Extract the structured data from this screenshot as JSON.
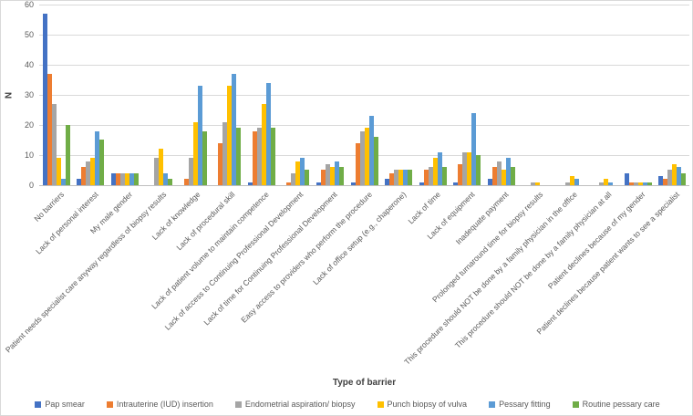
{
  "chart_data": {
    "type": "bar",
    "title": "",
    "xlabel": "Type of barrier",
    "ylabel": "N",
    "ylim": [
      0,
      60
    ],
    "yticks": [
      0,
      10,
      20,
      30,
      40,
      50,
      60
    ],
    "grid": true,
    "legend_position": "bottom",
    "categories": [
      "No barriers",
      "Lack of personal interest",
      "My male gender",
      "Patient needs specialist care anyway regardless of biopsy results",
      "Lack of knowledge",
      "Lack of procedural skill",
      "Lack of patient volume to maintain competence",
      "Lack of access to Continuing Professional Development",
      "Lack of time for Continuing Professional Development",
      "Easy access to providers who perform the procedure",
      "Lack of office setup (e.g., chaperone)",
      "Lack of time",
      "Lack of equipment",
      "Inadequate payment",
      "Prolonged turnaround time for biopsy results",
      "This procedure should NOT be done by a family physician in the office",
      "This procedure should NOT be done by a family physician at all",
      "Patient declines because of my gender",
      "Patient declines because patient wants to see a specialist"
    ],
    "series": [
      {
        "name": "Pap smear",
        "color": "#4472C4",
        "values": [
          57,
          2,
          4,
          0,
          0,
          0,
          1,
          0,
          1,
          1,
          2,
          1,
          1,
          2,
          0,
          0,
          0,
          4,
          3
        ]
      },
      {
        "name": "Intrauterine (IUD) insertion",
        "color": "#ED7D31",
        "values": [
          37,
          6,
          4,
          0,
          2,
          14,
          18,
          1,
          5,
          14,
          4,
          5,
          7,
          6,
          0,
          0,
          0,
          1,
          2
        ]
      },
      {
        "name": "Endometrial aspiration/ biopsy",
        "color": "#A5A5A5",
        "values": [
          27,
          8,
          4,
          9,
          9,
          21,
          19,
          4,
          7,
          18,
          5,
          6,
          11,
          8,
          1,
          1,
          1,
          1,
          5
        ]
      },
      {
        "name": "Punch biopsy of vulva",
        "color": "#FFC000",
        "values": [
          9,
          9,
          4,
          12,
          21,
          33,
          27,
          8,
          6,
          19,
          5,
          9,
          11,
          5,
          1,
          3,
          2,
          1,
          7
        ]
      },
      {
        "name": "Pessary fitting",
        "color": "#5B9BD5",
        "values": [
          2,
          18,
          4,
          4,
          33,
          37,
          34,
          9,
          8,
          23,
          5,
          11,
          24,
          9,
          0,
          2,
          1,
          1,
          6
        ]
      },
      {
        "name": "Routine pessary care",
        "color": "#70AD47",
        "values": [
          20,
          15,
          4,
          2,
          18,
          19,
          19,
          5,
          6,
          16,
          5,
          6,
          10,
          6,
          0,
          0,
          0,
          1,
          4
        ]
      }
    ],
    "colors": {
      "gridline": "#d9d9d9",
      "axis_line": "#bfbfbf",
      "tick_text": "#595959",
      "title_text": "#404040"
    }
  }
}
